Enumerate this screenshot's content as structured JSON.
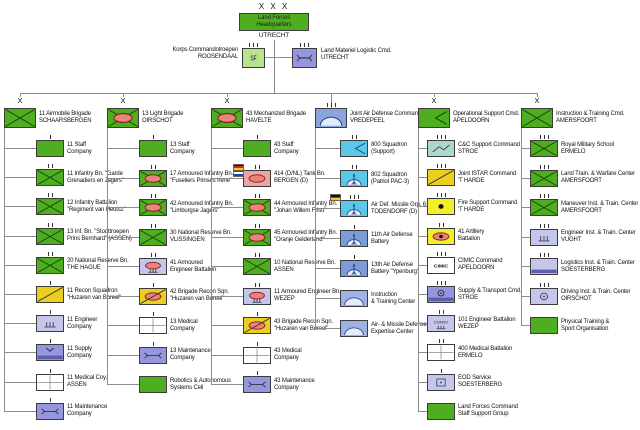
{
  "hq": {
    "echelon": "X X X",
    "name_lines": [
      "Land Forces",
      "Headquarters"
    ],
    "location": "UTRECHT",
    "style": "green"
  },
  "attached": [
    {
      "side": "left",
      "label_lines": [
        "Korps Commandotroepen",
        "ROOSENDAAL"
      ],
      "symbol": "sf-text",
      "style": "lightgreen",
      "ticks": 3
    },
    {
      "side": "right",
      "label_lines": [
        "Land Materiel Logistic Cmd.",
        "UTRECHT"
      ],
      "symbol": "maintenance",
      "style": "purple",
      "ticks": 3
    }
  ],
  "colors": {
    "green": "#4fae1f",
    "lightgreen": "#b9e48e",
    "gold": "#eccf1e",
    "brightyellow": "#f2ef2a",
    "pink": "#efa4a4",
    "purple": "#9596dd",
    "lavender": "#c5c6ec",
    "cyan": "#5bc8e8",
    "blue": "#8aa4dc",
    "blue2": "#7c9cd8",
    "lightblue": "#9fb2e2",
    "teal": "#abd7cf",
    "white": "#ffffff"
  },
  "columns": [
    {
      "header": {
        "echelon": "X",
        "name": "11 Airmobile Brigade",
        "sub": "SCHAARSBERGEN",
        "style": "green",
        "symbol": "infantry"
      },
      "children": [
        {
          "name": "11 Staff",
          "sub": "Company",
          "style": "green",
          "symbol": "none",
          "ticks": 1
        },
        {
          "name": "11 Infantry Bn. \"Garde",
          "sub": "Grenadiers en Jagers\"",
          "style": "green",
          "symbol": "infantry",
          "ticks": 2
        },
        {
          "name": "12 Infantry Battalion",
          "sub": "\"Regiment van Heutsz\"",
          "style": "green",
          "symbol": "infantry",
          "ticks": 2
        },
        {
          "name": "13 Inf. Bn. \"Stoottroepen",
          "sub": "Prins Bernhard\" (ASSEN)",
          "style": "green",
          "symbol": "infantry",
          "ticks": 2
        },
        {
          "name": "20 National Reserve Bn.",
          "sub": "THE HAGUE",
          "style": "green",
          "symbol": "infantry",
          "ticks": 2
        },
        {
          "name": "11 Recon Squadron",
          "sub": "\"Huzaren van Boreel\"",
          "style": "gold",
          "symbol": "recon",
          "ticks": 1
        },
        {
          "name": "11 Engineer",
          "sub": "Company",
          "style": "lavender",
          "symbol": "engineer",
          "ticks": 1
        },
        {
          "name": "11 Supply",
          "sub": "Company",
          "style": "purple",
          "symbol": "supply",
          "ticks": 1
        },
        {
          "name": "11 Medical Coy.",
          "sub": "ASSEN",
          "style": "white",
          "symbol": "medical",
          "ticks": 1
        },
        {
          "name": "11 Maintenance",
          "sub": "Company",
          "style": "purple",
          "symbol": "maintenance",
          "ticks": 1
        }
      ]
    },
    {
      "header": {
        "echelon": "X",
        "name": "13 Light Brigade",
        "sub": "OIRSCHOT",
        "style": "green",
        "symbol": "mech-infantry"
      },
      "children": [
        {
          "name": "13 Staff",
          "sub": "Company",
          "style": "green",
          "symbol": "none",
          "ticks": 1
        },
        {
          "name": "17 Armoured Infantry Bn.",
          "sub": "\"Fuseliers Prinses Irene\"",
          "style": "green",
          "symbol": "mech-infantry",
          "ticks": 2
        },
        {
          "name": "42 Armoured Infantry Bn.",
          "sub": "\"Limburgse Jagers\"",
          "style": "green",
          "symbol": "mech-infantry",
          "ticks": 2
        },
        {
          "name": "30 National Reserve Bn.",
          "sub": "VLISSINGEN",
          "style": "green",
          "symbol": "infantry",
          "ticks": 2
        },
        {
          "name": "41 Armoured",
          "sub": "Engineer Battalion",
          "style": "lavender",
          "symbol": "armored-engineer",
          "ticks": 2
        },
        {
          "name": "42 Brigade Recon Sqn.",
          "sub": "\"Huzaren van Boreel\"",
          "style": "gold",
          "symbol": "armored-recon",
          "ticks": 1
        },
        {
          "name": "13 Medical",
          "sub": "Company",
          "style": "white",
          "symbol": "medical",
          "ticks": 1
        },
        {
          "name": "13 Maintenance",
          "sub": "Company",
          "style": "purple",
          "symbol": "maintenance",
          "ticks": 1
        },
        {
          "name": "Robotics & Autonomous",
          "sub": "Systems Cell",
          "style": "green",
          "symbol": "none",
          "ticks": 0
        }
      ]
    },
    {
      "header": {
        "echelon": "X",
        "name": "43 Mechanized Brigade",
        "sub": "HAVELTE",
        "style": "green",
        "symbol": "mech-infantry"
      },
      "children": [
        {
          "name": "43 Staff",
          "sub": "Company",
          "style": "green",
          "symbol": "none",
          "ticks": 1
        },
        {
          "name": "414 (D/NL) Tank Bn.",
          "sub": "BERGEN (D)",
          "style": "pink",
          "symbol": "armor",
          "ticks": 2,
          "flags": [
            "DE",
            "NL"
          ]
        },
        {
          "name": "44 Armoured Infantry Bn.",
          "sub": "\"Johan Willem Friso\"",
          "style": "green",
          "symbol": "mech-infantry",
          "ticks": 2
        },
        {
          "name": "45 Armoured Infantry Bn.",
          "sub": "\"Oranje Gelderland\"",
          "style": "green",
          "symbol": "mech-infantry",
          "ticks": 2
        },
        {
          "name": "10 National Reserve Bn.",
          "sub": "ASSEN",
          "style": "green",
          "symbol": "infantry",
          "ticks": 2
        },
        {
          "name": "11 Armoured Engineer Bn.",
          "sub": "WEZEP",
          "style": "lavender",
          "symbol": "armored-engineer",
          "ticks": 2
        },
        {
          "name": "43 Brigade Recon Sqn.",
          "sub": "\"Huzaren van Boreel\"",
          "style": "gold",
          "symbol": "armored-recon",
          "ticks": 1
        },
        {
          "name": "43 Medical",
          "sub": "Company",
          "style": "white",
          "symbol": "medical",
          "ticks": 1
        },
        {
          "name": "43 Maintenance",
          "sub": "Company",
          "style": "purple",
          "symbol": "maintenance",
          "ticks": 1
        }
      ]
    },
    {
      "header": {
        "echelon": null,
        "name": "Joint Air Defense Command",
        "sub": "VREDEPEEL",
        "style": "blue",
        "symbol": "air-defense",
        "ticks": 3
      },
      "children": [
        {
          "name": "800 Squadron",
          "sub": "(Support)",
          "style": "cyan",
          "symbol": "support",
          "ticks": 2
        },
        {
          "name": "802 Squadron",
          "sub": "(Patriot PAC-3)",
          "style": "cyan",
          "symbol": "sam",
          "ticks": 2
        },
        {
          "name": "Air Def. Missile Grp. 61",
          "sub": "TODENDORF (D)",
          "style": "cyan",
          "symbol": "sam",
          "ticks": 3,
          "flags": [
            "DE"
          ]
        },
        {
          "name": "11th Air Defense",
          "sub": "Battery",
          "style": "blue2",
          "symbol": "sam",
          "ticks": 1
        },
        {
          "name": "13th Air Defense",
          "sub": "Battery \"Ypenburg\"",
          "style": "blue2",
          "symbol": "sam",
          "ticks": 1
        },
        {
          "name": "Instruction",
          "sub": "& Training Center",
          "style": "lightblue",
          "symbol": "air-defense",
          "ticks": 0
        },
        {
          "name": "Air- & Missile Defense",
          "sub": "Expertise Center",
          "style": "lightblue",
          "symbol": "air-defense",
          "ticks": 0
        }
      ]
    },
    {
      "header": {
        "echelon": "X",
        "name": "Operational Support Cmd.",
        "sub": "APELDOORN",
        "style": "green",
        "symbol": "support"
      },
      "children": [
        {
          "name": "C&C Support Command",
          "sub": "STROE",
          "style": "teal",
          "symbol": "signal",
          "ticks": 3
        },
        {
          "name": "Joint ISTAR Command",
          "sub": "'T HARDE",
          "style": "gold",
          "symbol": "recon",
          "ticks": 3
        },
        {
          "name": "Fire Support Command",
          "sub": "'T HARDE",
          "style": "brightyellow",
          "symbol": "artillery",
          "ticks": 3
        },
        {
          "name": "41 Artillery",
          "sub": "Battalion",
          "style": "brightyellow",
          "symbol": "armored-artillery",
          "ticks": 2
        },
        {
          "name": "CIMIC Command",
          "sub": "APELDOORN",
          "style": "white",
          "symbol": "cimic-text",
          "ticks": 3
        },
        {
          "name": "Supply & Transport Cmd.",
          "sub": "STROE",
          "style": "purple",
          "symbol": "supply-transport",
          "ticks": 3
        },
        {
          "name": "101 Engineer Battalion",
          "sub": "WEZEP",
          "style": "lavender",
          "symbol": "construction",
          "ticks": 2
        },
        {
          "name": "400 Medical Battalion",
          "sub": "ERMELO",
          "style": "white",
          "symbol": "medical",
          "ticks": 2
        },
        {
          "name": "EOD Service",
          "sub": "SOESTERBERG",
          "style": "lavender",
          "symbol": "eod",
          "ticks": 1
        },
        {
          "name": "Land Forces Command",
          "sub": "Staff Support Group",
          "style": "green",
          "symbol": "none",
          "ticks": 0
        }
      ]
    },
    {
      "header": {
        "echelon": "X",
        "name": "Instruction & Training Cmd.",
        "sub": "AMERSFOORT",
        "style": "green",
        "symbol": "infantry"
      },
      "children": [
        {
          "name": "Royal Military School",
          "sub": "ERMELO",
          "style": "green",
          "symbol": "infantry",
          "ticks": 3
        },
        {
          "name": "Land Train. & Warfare Center",
          "sub": "AMERSFOORT",
          "style": "green",
          "symbol": "infantry",
          "ticks": 3
        },
        {
          "name": "Maneuver Inst. & Train. Center",
          "sub": "AMERSFOORT",
          "style": "green",
          "symbol": "infantry",
          "ticks": 3
        },
        {
          "name": "Engineer Inst. & Train. Center",
          "sub": "VUGHT",
          "style": "lavender",
          "symbol": "engineer",
          "ticks": 3
        },
        {
          "name": "Logistics Inst. & Train. Center",
          "sub": "SOESTERBERG",
          "style": "lavender",
          "symbol": "logistics",
          "ticks": 3
        },
        {
          "name": "Driving Inst. & Train. Center",
          "sub": "OIRSCHOT",
          "style": "lavender",
          "symbol": "wheel",
          "ticks": 3
        },
        {
          "name": "Physical Training &",
          "sub": "Sport Organisation",
          "style": "green",
          "symbol": "none",
          "ticks": 0
        }
      ]
    }
  ]
}
